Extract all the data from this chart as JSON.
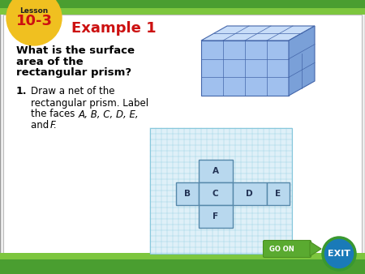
{
  "bg_color": "#f0f0f0",
  "white_bg": "#ffffff",
  "green_dark": "#4a9e30",
  "green_light": "#7dc63e",
  "badge_yellow": "#f0c020",
  "badge_text": "Lesson",
  "badge_number": "10-3",
  "badge_text_color": "#222222",
  "badge_number_color": "#cc1111",
  "example_title": "Example 1",
  "example_color": "#cc1111",
  "question_line1": "What is the surface",
  "question_line2": "area of the",
  "question_line3": "rectangular prism?",
  "step_num": "1.",
  "step_line1": "Draw a net of the",
  "step_line2": "rectangular prism. Label",
  "step_line3": "the faces A, B, C, D, E,",
  "step_line4": "and F.",
  "prism_front": "#a0c0ee",
  "prism_top": "#c8ddf8",
  "prism_side": "#7aa0d8",
  "prism_grid": "#4466aa",
  "net_bg": "#dff0f8",
  "net_grid": "#88c8dc",
  "net_face": "#b8d8ee",
  "net_face_edge": "#5588aa",
  "go_on_green": "#5aaa30",
  "go_on_arrow": "#4a9020",
  "exit_blue": "#1a7ab8",
  "exit_green_ring": "#3a9830"
}
